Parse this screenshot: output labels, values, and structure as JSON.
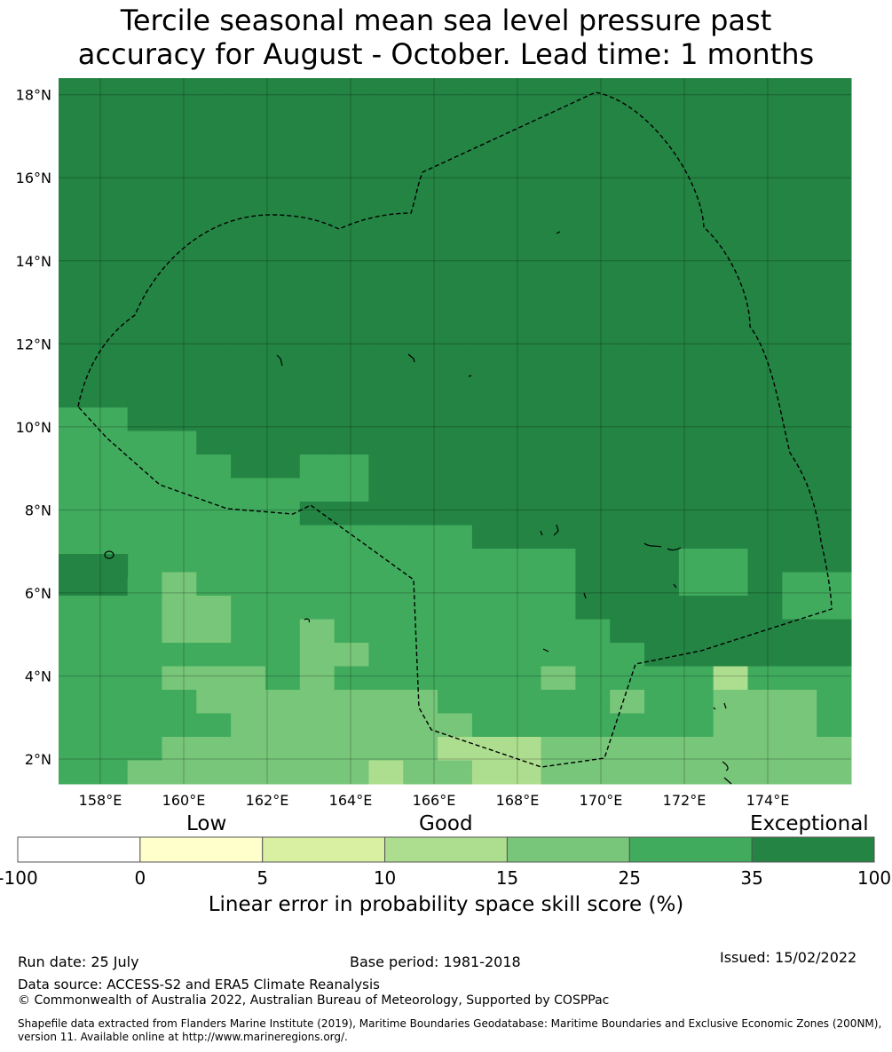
{
  "title": {
    "line1": "Tercile seasonal mean sea level pressure past",
    "line2": "accuracy for August - October. Lead time: 1 months"
  },
  "map": {
    "lat_labels": [
      "18°N",
      "16°N",
      "14°N",
      "12°N",
      "10°N",
      "8°N",
      "6°N",
      "4°N",
      "2°N"
    ],
    "lon_labels": [
      "158°E",
      "160°E",
      "162°E",
      "164°E",
      "166°E",
      "168°E",
      "170°E",
      "172°E",
      "174°E"
    ],
    "lat_range": [
      1.4,
      18.4
    ],
    "lon_range": [
      157.0,
      176.0
    ],
    "cell_size_deg": [
      0.833,
      0.556
    ],
    "class_colors": [
      "#ffffff",
      "#ffffcc",
      "#d9f0a3",
      "#addd8e",
      "#78c679",
      "#41ab5d",
      "#238443"
    ]
  },
  "colorbar": {
    "categories": {
      "low": "Low",
      "good": "Good",
      "exceptional": "Exceptional"
    },
    "ticks": [
      "-100",
      "0",
      "5",
      "10",
      "15",
      "25",
      "35",
      "100"
    ],
    "colors": [
      "#ffffff",
      "#ffffcc",
      "#d9f0a3",
      "#addd8e",
      "#78c679",
      "#41ab5d",
      "#238443"
    ],
    "title": "Linear error in probability space skill score (%)"
  },
  "footer": {
    "run_date": "Run date: 25 July",
    "base_period": "Base period: 1981-2018",
    "issued": "Issued: 15/02/2022",
    "data_source": "Data source: ACCESS-S2 and ERA5 Climate Reanalysis",
    "copyright": "© Commonwealth of Australia 2022, Australian Bureau of Meteorology, Supported by COSPPac",
    "shapefile_line1": "Shapefile data extracted from Flanders Marine Institute (2019), Maritime Boundaries Geodatabase: Maritime Boundaries and Exclusive Economic Zones (200NM),",
    "shapefile_line2": "version 11. Available online at http://www.marineregions.org/."
  }
}
